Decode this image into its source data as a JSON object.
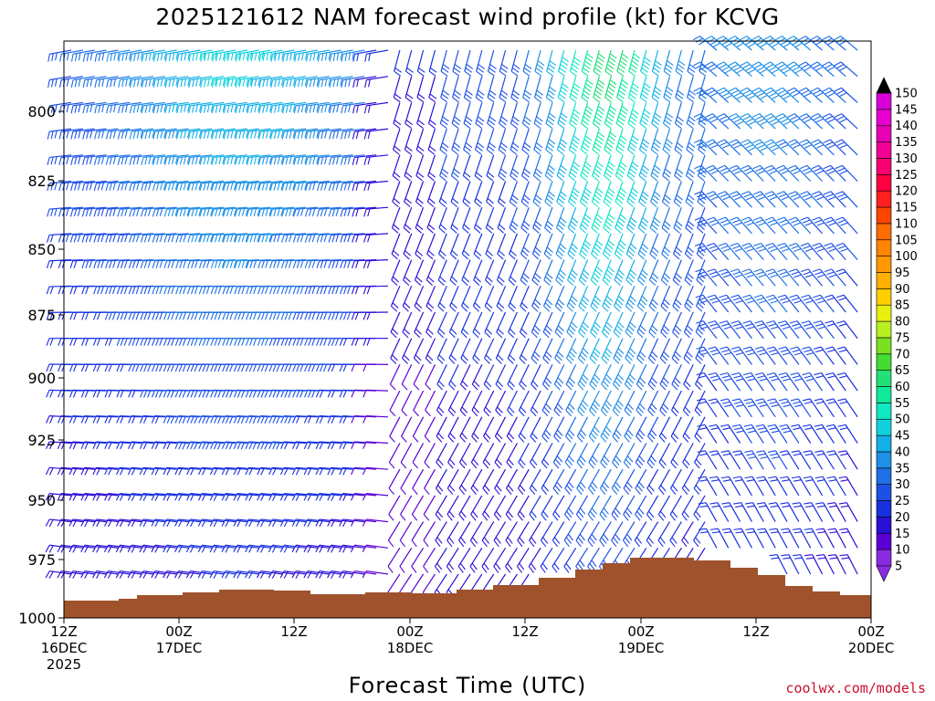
{
  "chart_data": {
    "type": "wind-barb time-height profile",
    "title": "2025121612 NAM forecast wind profile (kt) for KCVG",
    "xlabel": "Forecast Time (UTC)",
    "ylabel": "",
    "credit": "coolwx.com/models",
    "x_ticks": [
      {
        "lines": [
          "12Z",
          "16DEC",
          "2025"
        ]
      },
      {
        "lines": [
          "00Z",
          "17DEC"
        ]
      },
      {
        "lines": [
          "12Z"
        ]
      },
      {
        "lines": [
          "00Z",
          "18DEC"
        ]
      },
      {
        "lines": [
          "12Z"
        ]
      },
      {
        "lines": [
          "00Z",
          "19DEC"
        ]
      },
      {
        "lines": [
          "12Z"
        ]
      },
      {
        "lines": [
          "00Z",
          "20DEC"
        ]
      }
    ],
    "y_ticks": [
      800,
      825,
      850,
      875,
      900,
      925,
      950,
      975,
      1000
    ],
    "colorbar": {
      "values": [
        5,
        10,
        15,
        20,
        25,
        30,
        35,
        40,
        45,
        50,
        55,
        60,
        65,
        70,
        75,
        80,
        85,
        90,
        95,
        100,
        105,
        110,
        115,
        120,
        125,
        130,
        135,
        140,
        145,
        150
      ],
      "colors": [
        "#8a2be2",
        "#5a00d6",
        "#2a10d6",
        "#1830e0",
        "#1e50e6",
        "#1e70e6",
        "#1e90e6",
        "#14b0e8",
        "#10d2dc",
        "#10e8c0",
        "#10e89a",
        "#22e078",
        "#44dc30",
        "#7ae020",
        "#b8f020",
        "#e8f010",
        "#ffd000",
        "#ffb000",
        "#ff9800",
        "#ff8400",
        "#ff6c00",
        "#ff4400",
        "#ff2020",
        "#ff0040",
        "#f80070",
        "#f00094",
        "#e800b4",
        "#e800d0",
        "#d800d8",
        "#d000d0"
      ]
    },
    "terrain_color": "#a0522d"
  }
}
